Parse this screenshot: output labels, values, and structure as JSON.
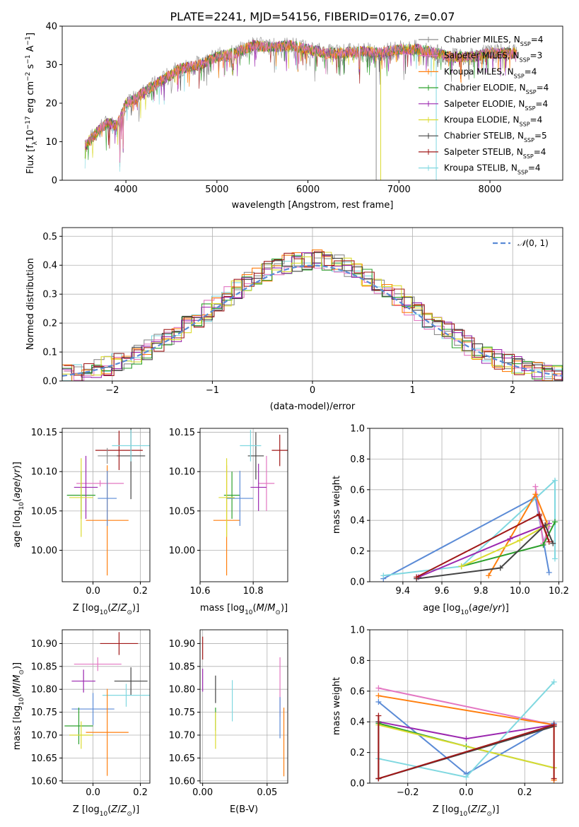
{
  "figure": {
    "title": "PLATE=2241, MJD=54156, FIBERID=0176, z=0.07"
  },
  "series_styles": [
    {
      "name": "Chabrier MILES",
      "label": "Chabrier MILES, N_SSP=4",
      "nssp": "4",
      "color": "#8c8c8c"
    },
    {
      "name": "Salpeter MILES",
      "label": "Salpeter MILES, N_SSP=3",
      "nssp": "3",
      "color": "#e377c2"
    },
    {
      "name": "Kroupa MILES",
      "label": "Kroupa MILES, N_SSP=4",
      "nssp": "4",
      "color": "#ff7f0e"
    },
    {
      "name": "Chabrier ELODIE",
      "label": "Chabrier ELODIE, N_SSP=4",
      "nssp": "4",
      "color": "#2ca02c"
    },
    {
      "name": "Salpeter ELODIE",
      "label": "Salpeter ELODIE, N_SSP=4",
      "nssp": "4",
      "color": "#9b27af"
    },
    {
      "name": "Kroupa ELODIE",
      "label": "Kroupa ELODIE, N_SSP=4",
      "nssp": "4",
      "color": "#dbdb30"
    },
    {
      "name": "Chabrier STELIB",
      "label": "Chabrier STELIB, N_SSP=5",
      "nssp": "5",
      "color": "#444444"
    },
    {
      "name": "Salpeter STELIB",
      "label": "Salpeter STELIB, N_SSP=4",
      "nssp": "4",
      "color": "#a01818"
    },
    {
      "name": "Kroupa STELIB",
      "label": "Kroupa STELIB, N_SSP=4",
      "nssp": "4",
      "color": "#80d8e0"
    }
  ],
  "chart_data": [
    {
      "id": "spectrum",
      "type": "line",
      "title": "PLATE=2241, MJD=54156, FIBERID=0176, z=0.07",
      "xlabel": "wavelength [Angstrom, rest frame]",
      "ylabel": "Flux [f_λ 10^-17 erg cm^-2 s^-1 A^-1]",
      "xlim": [
        3300,
        8800
      ],
      "ylim": [
        0,
        40
      ],
      "xticks": [
        4000,
        5000,
        6000,
        7000,
        8000
      ],
      "yticks": [
        0,
        10,
        20,
        30,
        40
      ],
      "legend": "right",
      "continuum": {
        "x": [
          3550,
          3700,
          3800,
          3900,
          4000,
          4100,
          4200,
          4400,
          4600,
          4800,
          5000,
          5200,
          5400,
          5600,
          5800,
          6000,
          6200,
          6400,
          6600,
          6800,
          7000,
          7200,
          7400,
          7600,
          7800,
          8000,
          8300
        ],
        "y": [
          9,
          13,
          15,
          14,
          20,
          21,
          23,
          26,
          29,
          30,
          32,
          33,
          35,
          34.5,
          35,
          34,
          33,
          33,
          33.5,
          33,
          34,
          34,
          33,
          32,
          32,
          33,
          33
        ]
      }
    },
    {
      "id": "residuals",
      "type": "line",
      "xlabel": "(data-model)/error",
      "ylabel": "Normed distribution",
      "xlim": [
        -2.5,
        2.5
      ],
      "ylim": [
        0,
        0.53
      ],
      "xticks": [
        -2,
        -1,
        0,
        1,
        2
      ],
      "yticks": [
        0.0,
        0.1,
        0.2,
        0.3,
        0.4,
        0.5
      ],
      "legend": "top-right",
      "reference": {
        "name": "N(0,1)",
        "style": "dashed",
        "color": "#5b8bd6"
      }
    },
    {
      "id": "age_vs_Z",
      "type": "scatter",
      "xlabel": "Z [log10(Z/Z⊙)]",
      "ylabel": "age [log10(age/yr)]",
      "xlim": [
        -0.13,
        0.24
      ],
      "ylim": [
        9.96,
        10.155
      ],
      "xticks": [
        0.0,
        0.2
      ],
      "xticklabels": [
        "0.0",
        "0.2"
      ],
      "yticks": [
        10.0,
        10.05,
        10.1,
        10.15
      ],
      "yticklabels": [
        "10.00",
        "10.05",
        "10.10",
        "10.15"
      ],
      "points": [
        {
          "s": 1,
          "x": 0.03,
          "y": 10.085,
          "xerr": 0.1,
          "yerr": 0
        },
        {
          "s": 2,
          "x": 0.06,
          "y": 10.038,
          "xerr": 0.09,
          "yerr": 0.07
        },
        {
          "s": 3,
          "x": -0.05,
          "y": 10.07,
          "xerr": 0.06,
          "yerr": 0.03
        },
        {
          "s": 4,
          "x": -0.03,
          "y": 10.08,
          "xerr": 0.05,
          "yerr": 0.04
        },
        {
          "s": 5,
          "x": -0.05,
          "y": 10.067,
          "xerr": 0.05,
          "yerr": 0.05
        },
        {
          "s": 6,
          "x": 0.16,
          "y": 10.12,
          "xerr": 0.06,
          "yerr": 0.055
        },
        {
          "s": 7,
          "x": 0.11,
          "y": 10.127,
          "xerr": 0.1,
          "yerr": 0.025
        },
        {
          "s": 8,
          "x": 0.16,
          "y": 10.133,
          "xerr": 0.08,
          "yerr": 0.02
        },
        {
          "s": 0,
          "x": 0.06,
          "y": 10.12,
          "xerr": 0.04,
          "yerr": 0.01
        },
        {
          "s": 0,
          "x": 0.06,
          "y": 10.066,
          "xerr": 0.04,
          "yerr": 0.035,
          "color": "#5b8bd6"
        }
      ]
    },
    {
      "id": "age_vs_mass",
      "type": "scatter",
      "xlabel": "mass [log10(M/M⊙)]",
      "ylabel": "",
      "xlim": [
        10.6,
        10.93
      ],
      "ylim": [
        9.96,
        10.155
      ],
      "xticks": [
        10.6,
        10.8
      ],
      "xticklabels": [
        "10.6",
        "10.8"
      ],
      "yticks": [
        10.0,
        10.05,
        10.1,
        10.15
      ],
      "yticklabels": [
        "10.00",
        "10.05",
        "10.10",
        "10.15"
      ],
      "points": [
        {
          "s": 1,
          "x": 10.85,
          "y": 10.085,
          "xerr": 0.03,
          "yerr": 0.035
        },
        {
          "s": 2,
          "x": 10.7,
          "y": 10.038,
          "xerr": 0.05,
          "yerr": 0.07
        },
        {
          "s": 3,
          "x": 10.72,
          "y": 10.07,
          "xerr": 0.03,
          "yerr": 0.03
        },
        {
          "s": 5,
          "x": 10.7,
          "y": 10.067,
          "xerr": 0.03,
          "yerr": 0.05
        },
        {
          "s": 6,
          "x": 10.81,
          "y": 10.12,
          "xerr": 0.03,
          "yerr": 0.03
        },
        {
          "s": 7,
          "x": 10.9,
          "y": 10.127,
          "xerr": 0.03,
          "yerr": 0.02
        },
        {
          "s": 8,
          "x": 10.79,
          "y": 10.133,
          "xerr": 0.04,
          "yerr": 0.02
        },
        {
          "s": 4,
          "x": 10.82,
          "y": 10.08,
          "xerr": 0.03,
          "yerr": 0.03
        },
        {
          "s": 0,
          "x": 10.75,
          "y": 10.066,
          "xerr": 0.05,
          "yerr": 0.035,
          "color": "#5b8bd6"
        }
      ]
    },
    {
      "id": "massweight_vs_age",
      "type": "line",
      "xlabel": "age [log10(age/yr)]",
      "ylabel": "mass weight",
      "xlim": [
        9.23,
        10.22
      ],
      "ylim": [
        0,
        1.0
      ],
      "xticks": [
        9.4,
        9.6,
        9.8,
        10.0,
        10.2
      ],
      "xticklabels": [
        "9.4",
        "9.6",
        "9.8",
        "10.0",
        "10.2"
      ],
      "yticks": [
        0.0,
        0.2,
        0.4,
        0.6,
        0.8,
        1.0
      ],
      "yticklabels": [
        "0.0",
        "0.2",
        "0.4",
        "0.6",
        "0.8",
        "1.0"
      ],
      "series": [
        {
          "s": 0,
          "color": "#5b8bd6",
          "x": [
            9.3,
            10.08,
            10.15
          ],
          "y": [
            0.02,
            0.55,
            0.06
          ]
        },
        {
          "s": 8,
          "x": [
            9.3,
            9.7,
            10.18,
            10.18
          ],
          "y": [
            0.04,
            0.1,
            0.66,
            0.15
          ]
        },
        {
          "s": 1,
          "x": [
            10.08,
            10.12,
            10.15
          ],
          "y": [
            0.62,
            0.25,
            0.36
          ]
        },
        {
          "s": 2,
          "x": [
            9.84,
            10.08,
            10.14
          ],
          "y": [
            0.04,
            0.57,
            0.38
          ]
        },
        {
          "s": 3,
          "x": [
            9.7,
            10.12,
            10.18
          ],
          "y": [
            0.1,
            0.24,
            0.39
          ]
        },
        {
          "s": 4,
          "x": [
            9.48,
            9.95,
            10.15
          ],
          "y": [
            0.03,
            0.28,
            0.38
          ]
        },
        {
          "s": 5,
          "x": [
            9.7,
            10.0,
            10.14
          ],
          "y": [
            0.1,
            0.27,
            0.37
          ]
        },
        {
          "s": 6,
          "x": [
            9.47,
            9.9,
            10.13,
            10.17
          ],
          "y": [
            0.02,
            0.09,
            0.37,
            0.25
          ]
        },
        {
          "s": 7,
          "x": [
            9.47,
            10.1,
            10.15,
            10.1
          ],
          "y": [
            0.03,
            0.44,
            0.26,
            0.43
          ]
        }
      ]
    },
    {
      "id": "mass_vs_Z",
      "type": "scatter",
      "xlabel": "Z [log10(Z/Z⊙)]",
      "ylabel": "mass [log10(M/M⊙)]",
      "xlim": [
        -0.13,
        0.24
      ],
      "ylim": [
        10.595,
        10.93
      ],
      "xticks": [
        0.0,
        0.2
      ],
      "xticklabels": [
        "0.0",
        "0.2"
      ],
      "yticks": [
        10.6,
        10.65,
        10.7,
        10.75,
        10.8,
        10.85,
        10.9
      ],
      "yticklabels": [
        "10.60",
        "10.65",
        "10.70",
        "10.75",
        "10.80",
        "10.85",
        "10.90"
      ],
      "points": [
        {
          "s": 7,
          "x": 0.11,
          "y": 10.9,
          "xerr": 0.08,
          "yerr": 0.025
        },
        {
          "s": 1,
          "x": 0.02,
          "y": 10.855,
          "xerr": 0.1,
          "yerr": 0.015
        },
        {
          "s": 4,
          "x": -0.04,
          "y": 10.818,
          "xerr": 0.05,
          "yerr": 0.025
        },
        {
          "s": 6,
          "x": 0.16,
          "y": 10.818,
          "xerr": 0.07,
          "yerr": 0.03
        },
        {
          "s": 8,
          "x": 0.14,
          "y": 10.787,
          "xerr": 0.1,
          "yerr": 0.025
        },
        {
          "s": 0,
          "x": 0.0,
          "y": 10.757,
          "xerr": 0.09,
          "yerr": 0.035,
          "color": "#5b8bd6"
        },
        {
          "s": 3,
          "x": -0.06,
          "y": 10.72,
          "xerr": 0.06,
          "yerr": 0.04
        },
        {
          "s": 2,
          "x": 0.06,
          "y": 10.706,
          "xerr": 0.09,
          "yerr": 0.095
        },
        {
          "s": 5,
          "x": -0.05,
          "y": 10.7,
          "xerr": 0.05,
          "yerr": 0.03
        }
      ]
    },
    {
      "id": "mass_vs_EBV",
      "type": "scatter",
      "xlabel": "E(B-V)",
      "ylabel": "",
      "xlim": [
        -0.002,
        0.066
      ],
      "ylim": [
        10.595,
        10.93
      ],
      "xticks": [
        0.0,
        0.05
      ],
      "xticklabels": [
        "0.00",
        "0.05"
      ],
      "yticks": [
        10.6,
        10.65,
        10.7,
        10.75,
        10.8,
        10.85,
        10.9
      ],
      "yticklabels": [
        "10.60",
        "10.65",
        "10.70",
        "10.75",
        "10.80",
        "10.85",
        "10.90"
      ],
      "points": [
        {
          "s": 7,
          "x": 0.0,
          "y": 10.89,
          "xerr": 0,
          "yerr": 0.025
        },
        {
          "s": 4,
          "x": 0.0,
          "y": 10.82,
          "xerr": 0,
          "yerr": 0.025
        },
        {
          "s": 6,
          "x": 0.01,
          "y": 10.8,
          "xerr": 0,
          "yerr": 0.03
        },
        {
          "s": 3,
          "x": 0.01,
          "y": 10.735,
          "xerr": 0,
          "yerr": 0.025
        },
        {
          "s": 5,
          "x": 0.01,
          "y": 10.71,
          "xerr": 0,
          "yerr": 0.04
        },
        {
          "s": 8,
          "x": 0.023,
          "y": 10.775,
          "xerr": 0,
          "yerr": 0.045
        },
        {
          "s": 1,
          "x": 0.06,
          "y": 10.805,
          "xerr": 0,
          "yerr": 0.065
        },
        {
          "s": 0,
          "x": 0.06,
          "y": 10.738,
          "xerr": 0,
          "yerr": 0.045,
          "color": "#5b8bd6"
        },
        {
          "s": 2,
          "x": 0.063,
          "y": 10.685,
          "xerr": 0,
          "yerr": 0.075
        }
      ]
    },
    {
      "id": "massweight_vs_Z",
      "type": "line",
      "xlabel": "Z [log10(Z/Z⊙)]",
      "ylabel": "mass weight",
      "xlim": [
        -0.33,
        0.33
      ],
      "ylim": [
        0,
        1.0
      ],
      "xticks": [
        -0.2,
        0.0,
        0.2
      ],
      "xticklabels": [
        "−0.2",
        "0.0",
        "0.2"
      ],
      "yticks": [
        0.0,
        0.2,
        0.4,
        0.6,
        0.8,
        1.0
      ],
      "yticklabels": [
        "0.0",
        "0.2",
        "0.4",
        "0.6",
        "0.8",
        "1.0"
      ],
      "series": [
        {
          "s": 1,
          "x": [
            -0.3,
            0.3
          ],
          "y": [
            0.62,
            0.38
          ]
        },
        {
          "s": 2,
          "x": [
            -0.3,
            0.3,
            0.3
          ],
          "y": [
            0.57,
            0.38,
            0.02
          ]
        },
        {
          "s": 0,
          "color": "#5b8bd6",
          "x": [
            -0.3,
            0.0,
            0.3
          ],
          "y": [
            0.53,
            0.06,
            0.39
          ]
        },
        {
          "s": 4,
          "x": [
            -0.3,
            0.0,
            0.3
          ],
          "y": [
            0.4,
            0.29,
            0.38
          ]
        },
        {
          "s": 3,
          "x": [
            -0.3,
            0.0,
            0.3
          ],
          "y": [
            0.39,
            0.24,
            0.1
          ]
        },
        {
          "s": 5,
          "x": [
            -0.3,
            0.3
          ],
          "y": [
            0.38,
            0.1
          ]
        },
        {
          "s": 8,
          "x": [
            -0.3,
            0.0,
            0.3
          ],
          "y": [
            0.16,
            0.04,
            0.66
          ]
        },
        {
          "s": 6,
          "x": [
            -0.3,
            0.3,
            -0.3,
            -0.3
          ],
          "y": [
            0.03,
            0.37,
            0.03,
            0.4
          ]
        },
        {
          "s": 7,
          "x": [
            -0.3,
            -0.3,
            0.3,
            0.3
          ],
          "y": [
            0.44,
            0.03,
            0.38,
            0.03
          ]
        }
      ]
    }
  ]
}
